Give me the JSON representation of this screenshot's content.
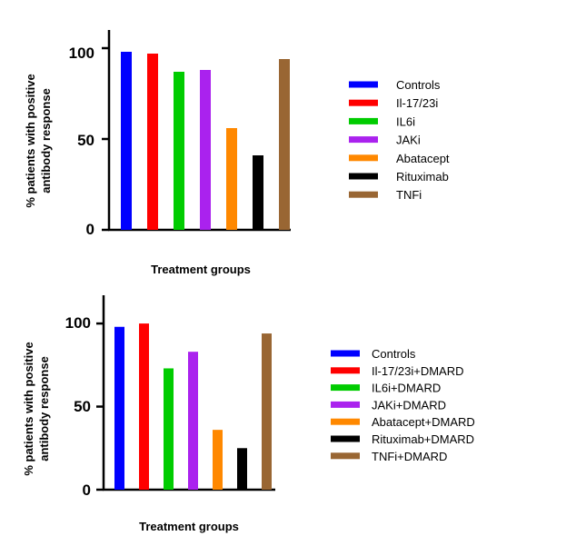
{
  "chart_data": [
    {
      "type": "bar",
      "title": "",
      "xlabel": "Treatment groups",
      "ylabel_lines": [
        "% patients with positive",
        "antibody response"
      ],
      "ylim": [
        0,
        110
      ],
      "yticks": [
        0,
        50,
        100
      ],
      "categories": [
        "Controls",
        "Il-17/23i",
        "IL6i",
        "JAKi",
        "Abatacept",
        "Rituximab",
        "TNFi"
      ],
      "values": [
        98,
        97,
        87,
        88,
        56,
        41,
        94
      ],
      "colors": [
        "#0000ff",
        "#ff0000",
        "#00cc00",
        "#aa22ee",
        "#ff8800",
        "#000000",
        "#996633"
      ],
      "legend_position": "right",
      "grid": false
    },
    {
      "type": "bar",
      "title": "",
      "xlabel": "Treatment groups",
      "ylabel_lines": [
        "% patients with positive",
        "antibody response"
      ],
      "ylim": [
        0,
        117
      ],
      "yticks": [
        0,
        50,
        100
      ],
      "categories": [
        "Controls",
        "Il-17/23i+DMARD",
        "IL6i+DMARD",
        "JAKi+DMARD",
        "Abatacept+DMARD",
        "Rituximab+DMARD",
        "TNFi+DMARD"
      ],
      "values": [
        98,
        100,
        73,
        83,
        36,
        25,
        94
      ],
      "colors": [
        "#0000ff",
        "#ff0000",
        "#00cc00",
        "#aa22ee",
        "#ff8800",
        "#000000",
        "#996633"
      ],
      "legend_position": "right",
      "grid": false
    }
  ]
}
